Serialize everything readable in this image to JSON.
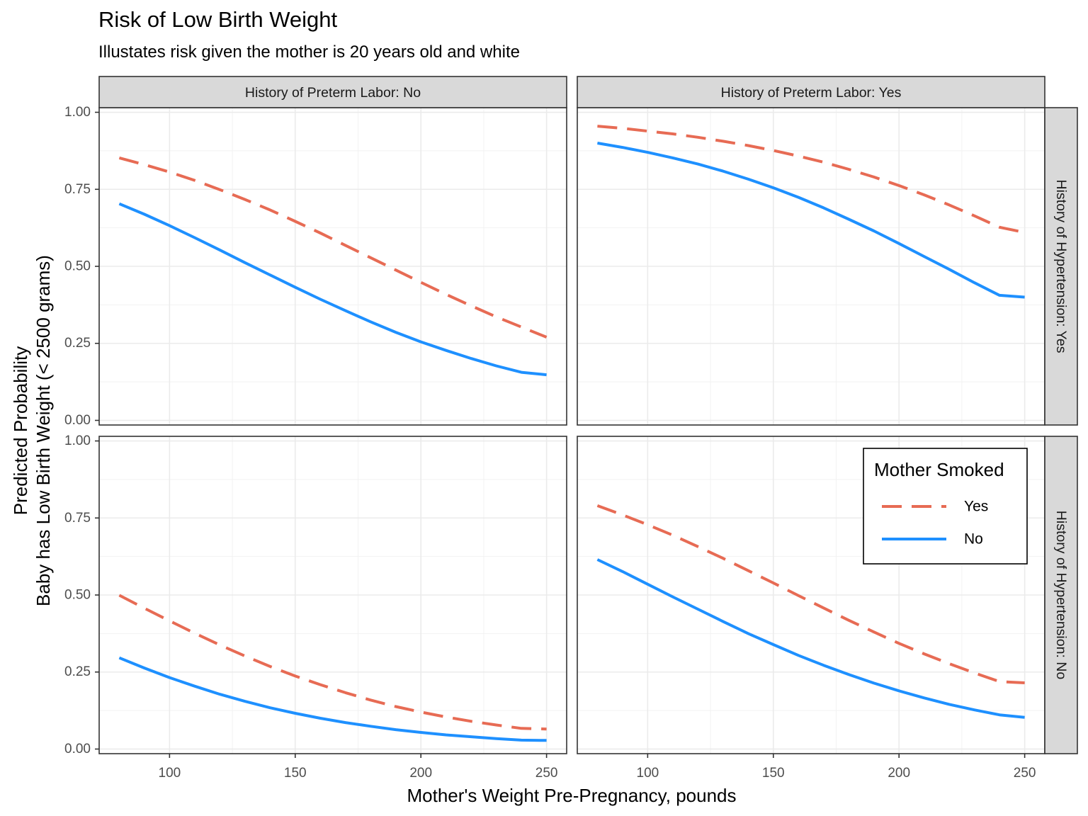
{
  "title": "Risk of Low Birth Weight",
  "subtitle": "Illustates risk given the mother is 20 years old and white",
  "chart_data": {
    "type": "line",
    "title": "Risk of Low Birth Weight",
    "subtitle": "Illustates risk given the mother is 20 years old and white",
    "xlabel": "Mother's Weight Pre-Pregnancy, pounds",
    "ylabel": [
      "Predicted Probability",
      "Baby has Low Birth Weight (< 2500 grams)"
    ],
    "xlim": [
      72,
      258
    ],
    "ylim": [
      -0.015,
      1.015
    ],
    "x_ticks": [
      100,
      150,
      200,
      250
    ],
    "x_tick_labels": [
      "100",
      "150",
      "200",
      "250"
    ],
    "y_ticks": [
      0,
      0.25,
      0.5,
      0.75,
      1
    ],
    "y_tick_labels": [
      "0.00",
      "0.25",
      "0.50",
      "0.75",
      "1.00"
    ],
    "grid": true,
    "legend": {
      "title": "Mother Smoked",
      "placement": "inside bottom-right panel, top-right",
      "entries": [
        {
          "label": "Yes",
          "color": "#E76B54",
          "style": "dashed"
        },
        {
          "label": "No",
          "color": "#1E90FF",
          "style": "solid"
        }
      ]
    },
    "col_facets": [
      "History of Preterm Labor: No",
      "History of Preterm Labor: Yes"
    ],
    "row_facets": [
      "History of Hypertension: Yes",
      "History of Hypertension: No"
    ],
    "x": [
      80,
      90,
      100,
      110,
      120,
      130,
      140,
      150,
      160,
      170,
      180,
      190,
      200,
      210,
      220,
      230,
      240,
      250
    ],
    "panels": [
      {
        "col": "History of Preterm Labor: No",
        "row": "History of Hypertension: Yes",
        "series": [
          {
            "name": "Yes",
            "values": [
              0.852,
              0.83,
              0.806,
              0.779,
              0.749,
              0.717,
              0.683,
              0.646,
              0.608,
              0.568,
              0.528,
              0.488,
              0.448,
              0.409,
              0.372,
              0.336,
              0.303,
              0.27
            ]
          },
          {
            "name": "No",
            "values": [
              0.703,
              0.669,
              0.632,
              0.593,
              0.553,
              0.512,
              0.472,
              0.432,
              0.393,
              0.356,
              0.32,
              0.286,
              0.255,
              0.227,
              0.201,
              0.177,
              0.156,
              0.148
            ]
          }
        ]
      },
      {
        "col": "History of Preterm Labor: Yes",
        "row": "History of Hypertension: Yes",
        "series": [
          {
            "name": "Yes",
            "values": [
              0.955,
              0.948,
              0.939,
              0.93,
              0.919,
              0.906,
              0.892,
              0.876,
              0.858,
              0.838,
              0.815,
              0.79,
              0.762,
              0.732,
              0.699,
              0.664,
              0.627,
              0.61
            ]
          },
          {
            "name": "No",
            "values": [
              0.9,
              0.886,
              0.87,
              0.852,
              0.832,
              0.809,
              0.783,
              0.755,
              0.724,
              0.69,
              0.653,
              0.615,
              0.574,
              0.532,
              0.49,
              0.447,
              0.406,
              0.4
            ]
          }
        ]
      },
      {
        "col": "History of Preterm Labor: No",
        "row": "History of Hypertension: No",
        "series": [
          {
            "name": "Yes",
            "values": [
              0.499,
              0.457,
              0.416,
              0.376,
              0.338,
              0.302,
              0.268,
              0.237,
              0.209,
              0.183,
              0.159,
              0.138,
              0.12,
              0.104,
              0.09,
              0.078,
              0.067,
              0.065
            ]
          },
          {
            "name": "No",
            "values": [
              0.296,
              0.263,
              0.232,
              0.204,
              0.178,
              0.155,
              0.134,
              0.116,
              0.1,
              0.086,
              0.074,
              0.063,
              0.054,
              0.046,
              0.04,
              0.034,
              0.029,
              0.028
            ]
          }
        ]
      },
      {
        "col": "History of Preterm Labor: Yes",
        "row": "History of Hypertension: No",
        "series": [
          {
            "name": "Yes",
            "values": [
              0.79,
              0.76,
              0.728,
              0.694,
              0.657,
              0.619,
              0.579,
              0.539,
              0.498,
              0.458,
              0.418,
              0.38,
              0.343,
              0.309,
              0.277,
              0.247,
              0.219,
              0.215
            ]
          },
          {
            "name": "No",
            "values": [
              0.615,
              0.576,
              0.535,
              0.494,
              0.454,
              0.414,
              0.375,
              0.339,
              0.304,
              0.272,
              0.242,
              0.214,
              0.189,
              0.166,
              0.145,
              0.127,
              0.111,
              0.103
            ]
          }
        ]
      }
    ]
  }
}
